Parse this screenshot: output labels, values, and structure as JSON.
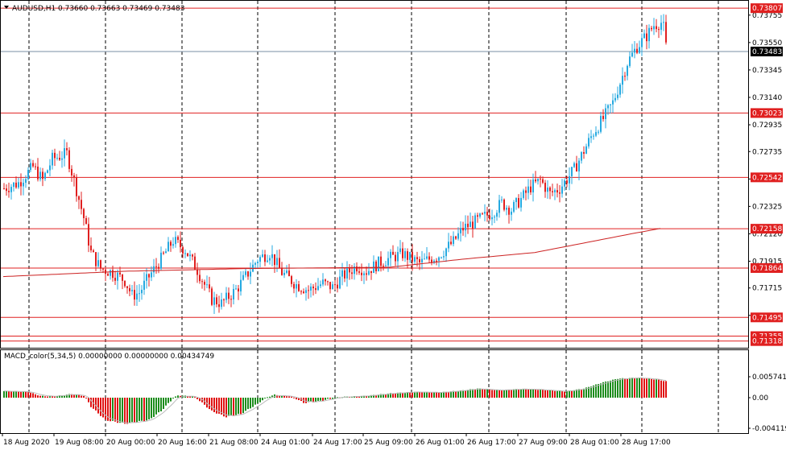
{
  "header": {
    "symbol": "AUDUSD,H1",
    "ohlc": "0.73660 0.73663 0.73469 0.73483"
  },
  "indicator": {
    "label": "MACD_color(5,34,5) 0.00000000 0.00000000 0.00434749",
    "ticks": [
      "0.0057419",
      "0.00",
      "-0.0041190"
    ],
    "tick_values": [
      0.0057419,
      0.0,
      -0.004119
    ]
  },
  "colors": {
    "bull": "#26a9e0",
    "bear": "#e02020",
    "level": "#e02020",
    "ma": "#cc2222",
    "macd_up": "#1c8c1c",
    "macd_down": "#e01010",
    "signal": "#bbbbbb",
    "current": "#7a8fa6"
  },
  "chart_data": {
    "type": "candlestick",
    "title": "AUDUSD,H1",
    "ylim": [
      0.7128,
      0.7385
    ],
    "y_ticks": [
      "0.73755",
      "0.73550",
      "0.73345",
      "0.73140",
      "0.72935",
      "0.72735",
      "0.72530",
      "0.72325",
      "0.72120",
      "0.71915",
      "0.71715",
      "0.71510"
    ],
    "y_tick_values": [
      0.73755,
      0.7355,
      0.73345,
      0.7314,
      0.72935,
      0.72735,
      0.7253,
      0.72325,
      0.7212,
      0.71915,
      0.71715,
      0.7151
    ],
    "x_ticks": [
      "18 Aug 2020",
      "19 Aug 08:00",
      "20 Aug 00:00",
      "20 Aug 16:00",
      "21 Aug 08:00",
      "24 Aug 01:00",
      "24 Aug 17:00",
      "25 Aug 09:00",
      "26 Aug 01:00",
      "26 Aug 17:00",
      "27 Aug 09:00",
      "28 Aug 01:00",
      "28 Aug 17:00"
    ],
    "levels": [
      "0.73807",
      "0.73023",
      "0.72542",
      "0.72158",
      "0.71864",
      "0.71495",
      "0.71355",
      "0.71318"
    ],
    "level_values": [
      0.73807,
      0.73023,
      0.72542,
      0.72158,
      0.71864,
      0.71495,
      0.71355,
      0.71318
    ],
    "current_price": "0.73483",
    "current_value": 0.73483,
    "ma_anchors": [
      [
        0,
        0.718
      ],
      [
        25,
        0.7184
      ],
      [
        50,
        0.7186
      ],
      [
        80,
        0.7187
      ],
      [
        95,
        0.7193
      ],
      [
        110,
        0.7198
      ],
      [
        130,
        0.7212
      ],
      [
        136,
        0.7216
      ]
    ],
    "candle_keys": [
      [
        0,
        0.7246
      ],
      [
        6,
        0.725
      ],
      [
        12,
        0.7262
      ],
      [
        16,
        0.7252
      ],
      [
        20,
        0.7268
      ],
      [
        26,
        0.7272
      ],
      [
        30,
        0.7245
      ],
      [
        33,
        0.7224
      ],
      [
        36,
        0.7198
      ],
      [
        40,
        0.7186
      ],
      [
        45,
        0.7183
      ],
      [
        50,
        0.7177
      ],
      [
        53,
        0.7166
      ],
      [
        56,
        0.7168
      ],
      [
        60,
        0.718
      ],
      [
        65,
        0.7193
      ],
      [
        70,
        0.7207
      ],
      [
        75,
        0.72
      ],
      [
        80,
        0.7185
      ],
      [
        86,
        0.7163
      ],
      [
        90,
        0.716
      ],
      [
        96,
        0.717
      ],
      [
        100,
        0.718
      ],
      [
        105,
        0.7193
      ],
      [
        110,
        0.7198
      ],
      [
        115,
        0.7183
      ],
      [
        121,
        0.7174
      ],
      [
        126,
        0.717
      ],
      [
        132,
        0.7175
      ],
      [
        136,
        0.7172
      ],
      [
        140,
        0.718
      ],
      [
        146,
        0.7188
      ],
      [
        150,
        0.7184
      ],
      [
        155,
        0.719
      ],
      [
        160,
        0.7194
      ],
      [
        165,
        0.7197
      ],
      [
        172,
        0.719
      ],
      [
        180,
        0.7196
      ],
      [
        186,
        0.7206
      ],
      [
        190,
        0.7216
      ],
      [
        196,
        0.7222
      ],
      [
        202,
        0.7228
      ],
      [
        206,
        0.7235
      ],
      [
        210,
        0.723
      ],
      [
        214,
        0.7238
      ],
      [
        218,
        0.7247
      ],
      [
        222,
        0.7252
      ],
      [
        226,
        0.7242
      ],
      [
        230,
        0.7246
      ],
      [
        236,
        0.726
      ],
      [
        240,
        0.7274
      ],
      [
        244,
        0.7288
      ],
      [
        248,
        0.7298
      ],
      [
        252,
        0.731
      ],
      [
        255,
        0.7325
      ],
      [
        258,
        0.734
      ],
      [
        262,
        0.7352
      ],
      [
        266,
        0.736
      ],
      [
        269,
        0.7368
      ],
      [
        272,
        0.737
      ],
      [
        273,
        0.7366
      ],
      [
        274,
        0.7352
      ]
    ],
    "macd_keys": [
      [
        0,
        0.0018
      ],
      [
        10,
        0.0016
      ],
      [
        15,
        0.0005
      ],
      [
        20,
        0.0003
      ],
      [
        28,
        0.001
      ],
      [
        33,
        0.0005
      ],
      [
        36,
        -0.0012
      ],
      [
        42,
        -0.003
      ],
      [
        50,
        -0.0035
      ],
      [
        60,
        -0.003
      ],
      [
        65,
        -0.0018
      ],
      [
        72,
        0.0006
      ],
      [
        78,
        0.0004
      ],
      [
        86,
        -0.0018
      ],
      [
        92,
        -0.0026
      ],
      [
        98,
        -0.0022
      ],
      [
        104,
        -0.001
      ],
      [
        112,
        0.0008
      ],
      [
        118,
        0.0004
      ],
      [
        124,
        -0.0007
      ],
      [
        130,
        -0.0005
      ],
      [
        140,
        0.0002
      ],
      [
        150,
        0.0005
      ],
      [
        160,
        0.0012
      ],
      [
        170,
        0.0016
      ],
      [
        180,
        0.0014
      ],
      [
        190,
        0.002
      ],
      [
        196,
        0.0025
      ],
      [
        205,
        0.002
      ],
      [
        214,
        0.0024
      ],
      [
        222,
        0.0022
      ],
      [
        232,
        0.0017
      ],
      [
        240,
        0.0025
      ],
      [
        248,
        0.0042
      ],
      [
        254,
        0.0052
      ],
      [
        262,
        0.0055
      ],
      [
        270,
        0.005
      ],
      [
        274,
        0.0045
      ]
    ]
  }
}
